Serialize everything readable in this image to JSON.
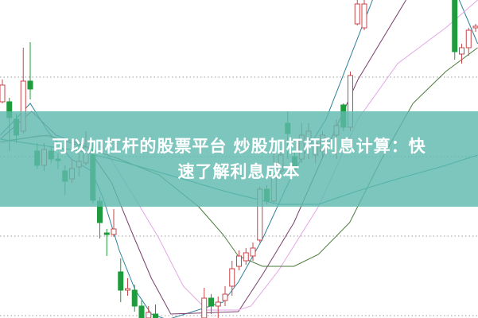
{
  "headline": {
    "line1": "可以加杠杆的股票平台 炒股加杠杆利息计算：快",
    "line2": "速了解利息成本"
  },
  "chart_data": {
    "type": "candlestick",
    "title": "",
    "xlabel": "",
    "ylabel": "",
    "grid": true,
    "axes_visible": false,
    "ylim": [
      0,
      100
    ],
    "colors": {
      "up": "#c8464b",
      "down": "#1e9b3c",
      "grid": "#9a9a9a"
    },
    "candles": [
      {
        "i": 0,
        "o": 68,
        "h": 75,
        "l": 67.5,
        "c": 73.25
      },
      {
        "i": 1,
        "o": 68,
        "h": 69.25,
        "l": 52.5,
        "c": 63
      },
      {
        "i": 2,
        "o": 62.5,
        "h": 64.25,
        "l": 55,
        "c": 57.5
      },
      {
        "i": 3,
        "o": 58.75,
        "h": 85,
        "l": 58,
        "c": 74.5
      },
      {
        "i": 4,
        "o": 74.5,
        "h": 86.75,
        "l": 68.75,
        "c": 72
      },
      {
        "i": 5,
        "o": 52.5,
        "h": 55,
        "l": 46.75,
        "c": 48
      },
      {
        "i": 6,
        "o": 48,
        "h": 55,
        "l": 46.25,
        "c": 53
      },
      {
        "i": 7,
        "o": 52.5,
        "h": 53.75,
        "l": 48.75,
        "c": 50
      },
      {
        "i": 8,
        "o": 50,
        "h": 51.75,
        "l": 46.75,
        "c": 49.5
      },
      {
        "i": 9,
        "o": 46.25,
        "h": 48,
        "l": 38.75,
        "c": 43
      },
      {
        "i": 10,
        "o": 43.75,
        "h": 50,
        "l": 42.5,
        "c": 47
      },
      {
        "i": 11,
        "o": 47.5,
        "h": 51.75,
        "l": 44.5,
        "c": 49.25
      },
      {
        "i": 12,
        "o": 48.75,
        "h": 58.75,
        "l": 48,
        "c": 53.75
      },
      {
        "i": 13,
        "o": 51.25,
        "h": 55,
        "l": 36,
        "c": 37
      },
      {
        "i": 14,
        "o": 36.75,
        "h": 38,
        "l": 25,
        "c": 30
      },
      {
        "i": 15,
        "o": 26.75,
        "h": 28,
        "l": 19.5,
        "c": 26.25
      },
      {
        "i": 16,
        "o": 26.25,
        "h": 34.25,
        "l": 25.5,
        "c": 28
      },
      {
        "i": 17,
        "o": 14.5,
        "h": 18.75,
        "l": 5,
        "c": 8.75
      },
      {
        "i": 18,
        "o": 8.75,
        "h": 12.5,
        "l": 7,
        "c": 9.25
      },
      {
        "i": 19,
        "o": 8.75,
        "h": 10.5,
        "l": 2,
        "c": 3.75
      },
      {
        "i": 20,
        "o": 3.75,
        "h": 5.5,
        "l": -0.5,
        "c": 0
      },
      {
        "i": 21,
        "o": 0,
        "h": 3.75,
        "l": -0.5,
        "c": 1.75
      },
      {
        "i": 22,
        "o": 1.25,
        "h": 4.25,
        "l": -0.5,
        "c": 0
      },
      {
        "i": 29,
        "o": 0,
        "h": 9.5,
        "l": -0.5,
        "c": 6.25
      },
      {
        "i": 30,
        "o": 6.25,
        "h": 7.5,
        "l": 1.25,
        "c": 3.75
      },
      {
        "i": 31,
        "o": 3.75,
        "h": 6.75,
        "l": 0,
        "c": 5
      },
      {
        "i": 32,
        "o": 5.5,
        "h": 10,
        "l": 3.75,
        "c": 7.5
      },
      {
        "i": 33,
        "o": 10,
        "h": 18,
        "l": 7,
        "c": 15.5
      },
      {
        "i": 34,
        "o": 16.25,
        "h": 21.25,
        "l": 15,
        "c": 19.5
      },
      {
        "i": 35,
        "o": 18,
        "h": 22,
        "l": 16.75,
        "c": 20.5
      },
      {
        "i": 36,
        "o": 19.5,
        "h": 23.75,
        "l": 18,
        "c": 22
      },
      {
        "i": 37,
        "o": 24.5,
        "h": 41.25,
        "l": 23.75,
        "c": 40.5
      },
      {
        "i": 38,
        "o": 40.5,
        "h": 41.75,
        "l": 35.75,
        "c": 36.75
      },
      {
        "i": 39,
        "o": 36.75,
        "h": 51.75,
        "l": 36.25,
        "c": 47.5
      },
      {
        "i": 40,
        "o": 46.25,
        "h": 52.5,
        "l": 45,
        "c": 51.25
      },
      {
        "i": 41,
        "o": 61.25,
        "h": 65,
        "l": 50,
        "c": 58
      },
      {
        "i": 42,
        "o": 50.75,
        "h": 52.5,
        "l": 45,
        "c": 46.75
      },
      {
        "i": 43,
        "o": 50,
        "h": 61.25,
        "l": 48.75,
        "c": 57.5
      },
      {
        "i": 44,
        "o": 56.25,
        "h": 61.25,
        "l": 50,
        "c": 58.75
      },
      {
        "i": 45,
        "o": 51.25,
        "h": 56.25,
        "l": 48.75,
        "c": 55
      },
      {
        "i": 46,
        "o": 52.5,
        "h": 58.75,
        "l": 50,
        "c": 57.5
      },
      {
        "i": 48,
        "o": 57.5,
        "h": 62.5,
        "l": 50,
        "c": 60.5
      },
      {
        "i": 49,
        "o": 67,
        "h": 67.5,
        "l": 58.75,
        "c": 60
      },
      {
        "i": 50,
        "o": 60,
        "h": 77.5,
        "l": 58.75,
        "c": 76.25
      },
      {
        "i": 51,
        "o": 92.5,
        "h": 100,
        "l": 92,
        "c": 98.75
      },
      {
        "i": 52,
        "o": 91.25,
        "h": 100,
        "l": 90.5,
        "c": 98.75
      },
      {
        "i": 65,
        "o": 100,
        "h": 100,
        "l": 81.25,
        "c": 83.75
      },
      {
        "i": 66,
        "o": 83,
        "h": 86.25,
        "l": 80,
        "c": 85
      },
      {
        "i": 67,
        "o": 85,
        "h": 91.25,
        "l": 82.5,
        "c": 90.5
      },
      {
        "i": 68,
        "o": 91.25,
        "h": 92.5,
        "l": 90,
        "c": 91.75
      }
    ],
    "moving_averages": [
      {
        "color": "#2f7f9a",
        "points": [
          [
            -0.3,
            57.5
          ],
          [
            1.9,
            62.5
          ],
          [
            4,
            67.5
          ],
          [
            6.5,
            58.75
          ],
          [
            9.9,
            50
          ],
          [
            12.8,
            46.25
          ],
          [
            14.5,
            37.5
          ],
          [
            16.8,
            21.25
          ],
          [
            19.1,
            8.75
          ],
          [
            21.4,
            1.25
          ],
          [
            23.7,
            -0.5
          ],
          [
            31.7,
            5
          ],
          [
            33.9,
            11.25
          ],
          [
            37.4,
            25
          ],
          [
            41.9,
            46.25
          ],
          [
            46.5,
            62.5
          ],
          [
            53.4,
            101.25
          ],
          [
            65.4,
            101.25
          ],
          [
            67.1,
            92.5
          ],
          [
            68.3,
            86.25
          ]
        ]
      },
      {
        "color": "#7a3f6e",
        "points": [
          [
            -0.3,
            56.25
          ],
          [
            4.2,
            65
          ],
          [
            7.7,
            57.5
          ],
          [
            12.2,
            53.75
          ],
          [
            15.7,
            42.5
          ],
          [
            18.5,
            27.5
          ],
          [
            21.4,
            12.5
          ],
          [
            24.2,
            1.25
          ],
          [
            33.9,
            2
          ],
          [
            37.4,
            13.75
          ],
          [
            41.9,
            30
          ],
          [
            45.4,
            47.5
          ],
          [
            51.1,
            75
          ],
          [
            58,
            100
          ]
        ]
      },
      {
        "color": "#e3a6e6",
        "points": [
          [
            -0.3,
            55
          ],
          [
            5.4,
            57.5
          ],
          [
            14.5,
            53.75
          ],
          [
            19.1,
            37.5
          ],
          [
            22.5,
            25
          ],
          [
            26,
            10
          ],
          [
            29.4,
            2.5
          ],
          [
            33.9,
            2.5
          ],
          [
            35.7,
            3.75
          ],
          [
            39.7,
            15
          ],
          [
            45.4,
            35
          ],
          [
            51.1,
            62.5
          ],
          [
            56.8,
            80
          ],
          [
            63.7,
            91.25
          ],
          [
            68.3,
            100
          ]
        ]
      },
      {
        "color": "#4a7a3a",
        "points": [
          [
            -0.3,
            55.5
          ],
          [
            6.5,
            57.5
          ],
          [
            16.8,
            50
          ],
          [
            22.5,
            45
          ],
          [
            28.2,
            35
          ],
          [
            31.7,
            26.25
          ],
          [
            33.9,
            19.5
          ],
          [
            37.4,
            16.25
          ],
          [
            41.9,
            16.25
          ],
          [
            45.4,
            20
          ],
          [
            49.9,
            30
          ],
          [
            54.5,
            50
          ],
          [
            59,
            67.5
          ],
          [
            63.7,
            77.5
          ],
          [
            68.3,
            85
          ]
        ]
      },
      {
        "color": "#2a8a8a",
        "points": [
          [
            -0.3,
            56.25
          ],
          [
            11.1,
            52.5
          ],
          [
            17.9,
            48.75
          ],
          [
            25.9,
            43.75
          ],
          [
            31.7,
            40
          ],
          [
            33.9,
            38.75
          ],
          [
            39.7,
            35.75
          ],
          [
            45.4,
            35.75
          ],
          [
            51.1,
            40
          ],
          [
            56.8,
            43.75
          ],
          [
            63.7,
            48
          ],
          [
            68.3,
            51.25
          ]
        ]
      }
    ]
  }
}
